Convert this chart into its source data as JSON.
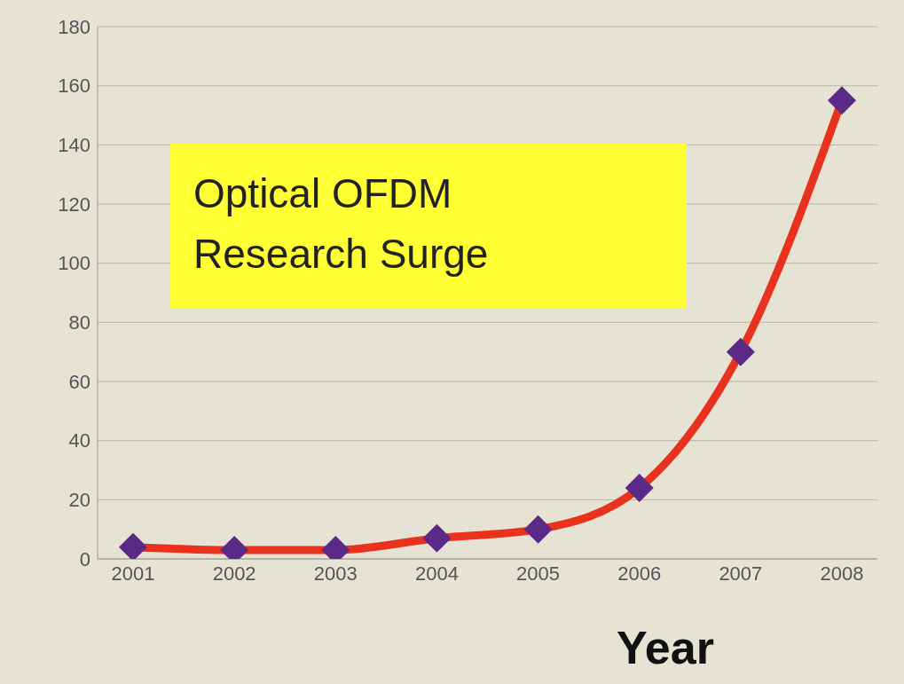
{
  "chart_data": {
    "type": "line",
    "xlabel": "Year",
    "categories": [
      "2001",
      "2002",
      "2003",
      "2004",
      "2005",
      "2006",
      "2007",
      "2008"
    ],
    "series": [
      {
        "color": "#e8321e",
        "colors": [
          "#5b2a86",
          "#5b2a86",
          "#5b2a86",
          "#5b2a86",
          "#5b2a86",
          "#5b2a86",
          "#5b2a86",
          "#5b2a86"
        ],
        "values": [
          4,
          3,
          3,
          7,
          10,
          24,
          70,
          155
        ]
      }
    ],
    "ylim": [
      0,
      180
    ],
    "yticks": [
      0,
      20,
      40,
      60,
      80,
      100,
      120,
      140,
      160,
      180
    ],
    "grid": "y",
    "marker": "diamond",
    "line_style": "solid",
    "annotations": [
      "Optical OFDM\nResearch Surge"
    ]
  }
}
